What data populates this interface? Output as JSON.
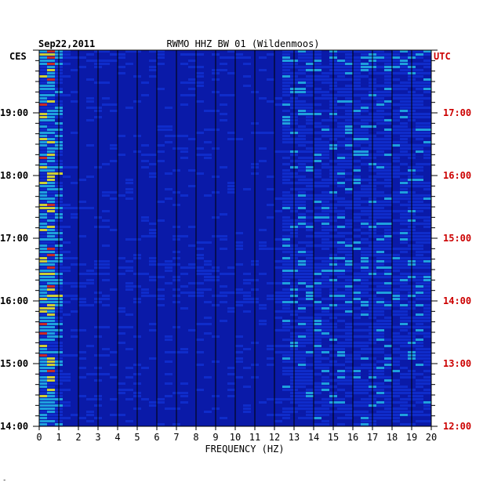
{
  "chart_data": {
    "type": "heatmap",
    "title": "RWMO HHZ BW 01 (Wildenmoos)",
    "date": "Sep22,2011",
    "xlabel": "FREQUENCY (HZ)",
    "xlim": [
      0,
      20
    ],
    "x_ticks": [
      "0",
      "1",
      "2",
      "3",
      "4",
      "5",
      "6",
      "7",
      "8",
      "9",
      "10",
      "11",
      "12",
      "13",
      "14",
      "15",
      "16",
      "17",
      "18",
      "19",
      "20"
    ],
    "left_axis": {
      "label": "CES",
      "ticks": [
        {
          "label": "19:00",
          "hours_from_bottom": 5
        },
        {
          "label": "18:00",
          "hours_from_bottom": 4
        },
        {
          "label": "17:00",
          "hours_from_bottom": 3
        },
        {
          "label": "16:00",
          "hours_from_bottom": 2
        },
        {
          "label": "15:00",
          "hours_from_bottom": 1
        },
        {
          "label": "14:00",
          "hours_from_bottom": 0
        }
      ]
    },
    "right_axis": {
      "label": "UTC",
      "ticks": [
        {
          "label": "17:00",
          "hours_from_bottom": 5
        },
        {
          "label": "16:00",
          "hours_from_bottom": 4
        },
        {
          "label": "15:00",
          "hours_from_bottom": 3
        },
        {
          "label": "14:00",
          "hours_from_bottom": 2
        },
        {
          "label": "13:00",
          "hours_from_bottom": 1
        },
        {
          "label": "12:00",
          "hours_from_bottom": 0
        }
      ]
    },
    "time_span_hours": 6,
    "colors": {
      "background": "#0a1aa8",
      "low": "#1030d0",
      "mid": "#22b8e8",
      "high": "#f0f020",
      "peak": "#e83010",
      "gridline": "#000000"
    }
  },
  "footer_mark": "-"
}
